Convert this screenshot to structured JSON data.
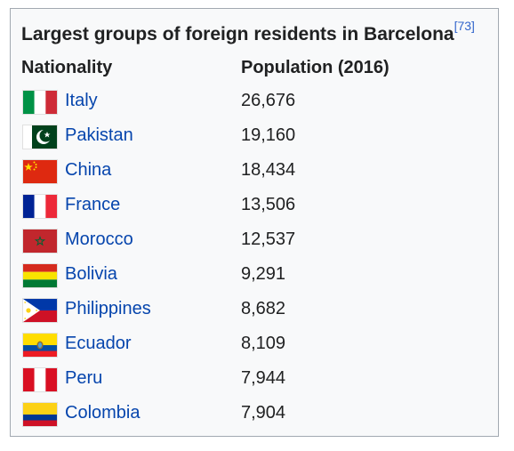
{
  "table": {
    "title": "Largest groups of foreign residents in Barcelona",
    "citation": "[73]",
    "headers": {
      "nationality": "Nationality",
      "population": "Population (2016)"
    },
    "rows": [
      {
        "country": "Italy",
        "population": "26,676",
        "flag_icon": "italy-flag-icon"
      },
      {
        "country": "Pakistan",
        "population": "19,160",
        "flag_icon": "pakistan-flag-icon"
      },
      {
        "country": "China",
        "population": "18,434",
        "flag_icon": "china-flag-icon"
      },
      {
        "country": "France",
        "population": "13,506",
        "flag_icon": "france-flag-icon"
      },
      {
        "country": "Morocco",
        "population": "12,537",
        "flag_icon": "morocco-flag-icon"
      },
      {
        "country": "Bolivia",
        "population": "9,291",
        "flag_icon": "bolivia-flag-icon"
      },
      {
        "country": "Philippines",
        "population": "8,682",
        "flag_icon": "philippines-flag-icon"
      },
      {
        "country": "Ecuador",
        "population": "8,109",
        "flag_icon": "ecuador-flag-icon"
      },
      {
        "country": "Peru",
        "population": "7,944",
        "flag_icon": "peru-flag-icon"
      },
      {
        "country": "Colombia",
        "population": "7,904",
        "flag_icon": "colombia-flag-icon"
      }
    ]
  },
  "colors": {
    "link": "#0645ad",
    "text": "#202122",
    "border": "#a2a9b1",
    "background": "#f8f9fa"
  }
}
